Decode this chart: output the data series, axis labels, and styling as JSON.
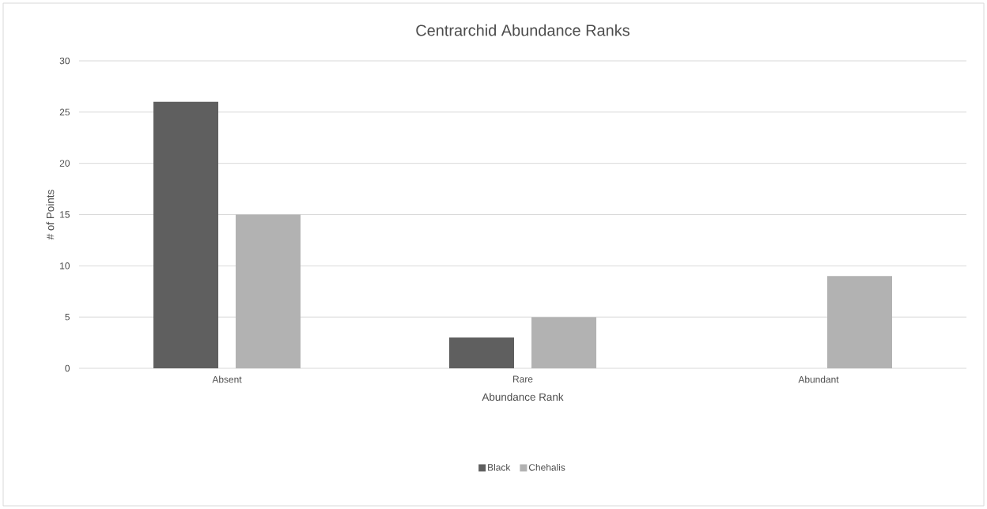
{
  "chart_data": {
    "type": "bar",
    "title": "Centrarchid Abundance Ranks",
    "xlabel": "Abundance Rank",
    "ylabel": "# of Points",
    "categories": [
      "Absent",
      "Rare",
      "Abundant"
    ],
    "series": [
      {
        "name": "Black",
        "color": "#5f5f5f",
        "values": [
          26,
          3,
          0
        ]
      },
      {
        "name": "Chehalis",
        "color": "#b2b2b2",
        "values": [
          15,
          5,
          9
        ]
      }
    ],
    "ylim": [
      0,
      30
    ],
    "yticks": [
      0,
      5,
      10,
      15,
      20,
      25,
      30
    ],
    "grid": "y",
    "legend": "bottom"
  }
}
